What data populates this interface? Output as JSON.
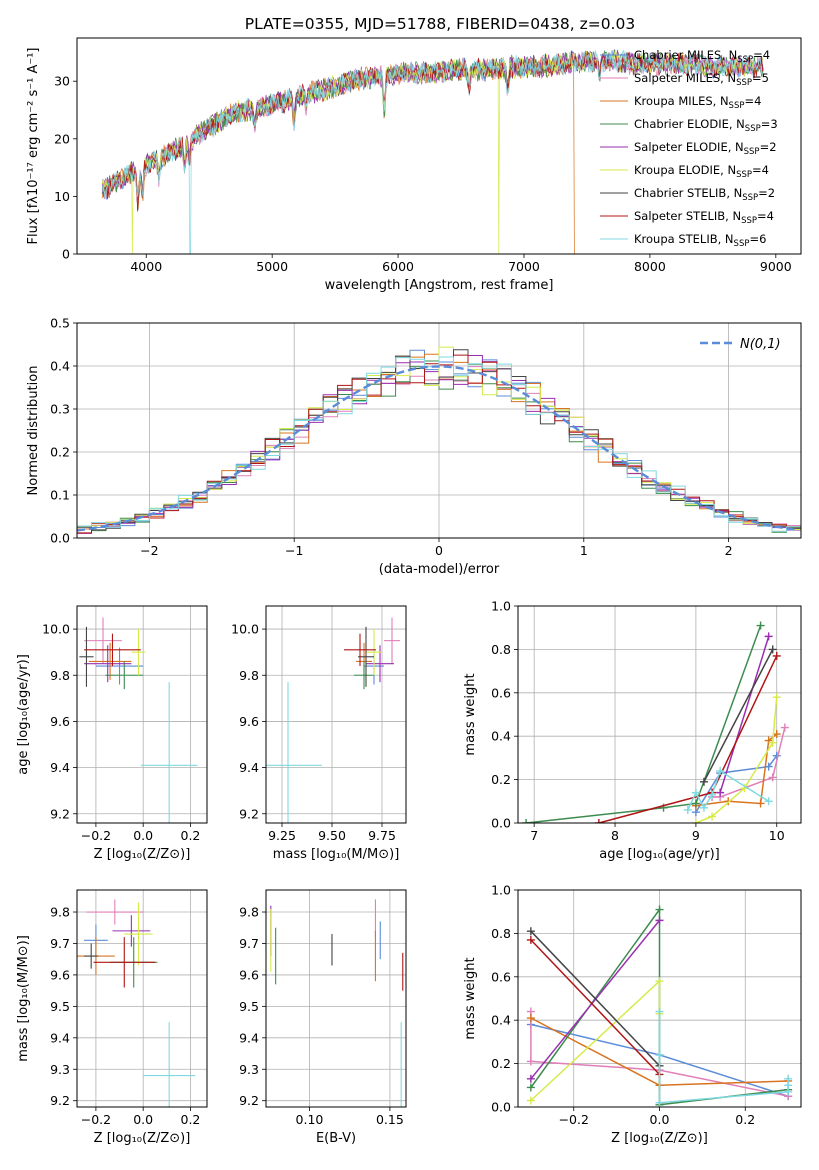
{
  "figure": {
    "title": "PLATE=0355, MJD=51788, FIBERID=0438, z=0.03"
  },
  "chart_data": [
    {
      "type": "line",
      "id": "spectrum",
      "title": "PLATE=0355, MJD=51788, FIBERID=0438, z=0.03",
      "xlabel": "wavelength [Angstrom, rest frame]",
      "ylabel": "Flux [fλ10⁻¹⁷ erg cm⁻² s⁻¹ A⁻¹]",
      "xlim": [
        3450,
        9200
      ],
      "ylim": [
        0,
        37.5
      ],
      "xticks": [
        4000,
        5000,
        6000,
        7000,
        8000,
        9000
      ],
      "yticks": [
        0,
        10,
        20,
        30
      ],
      "grid": false,
      "legend_position": "right",
      "series": [
        {
          "name": "Chabrier MILES, N_SSP=4",
          "label_main": "Chabrier MILES, N",
          "label_sub": "SSP",
          "label_tail": "=4",
          "color": "#5b8cd9"
        },
        {
          "name": "Salpeter MILES, N_SSP=5",
          "label_main": "Salpeter MILES, N",
          "label_sub": "SSP",
          "label_tail": "=5",
          "color": "#e07fb8"
        },
        {
          "name": "Kroupa MILES, N_SSP=4",
          "label_main": "Kroupa MILES, N",
          "label_sub": "SSP",
          "label_tail": "=4",
          "color": "#d97320"
        },
        {
          "name": "Chabrier ELODIE, N_SSP=3",
          "label_main": "Chabrier ELODIE, N",
          "label_sub": "SSP",
          "label_tail": "=3",
          "color": "#3d8c4f"
        },
        {
          "name": "Salpeter ELODIE, N_SSP=2",
          "label_main": "Salpeter ELODIE, N",
          "label_sub": "SSP",
          "label_tail": "=2",
          "color": "#9a2fb0"
        },
        {
          "name": "Kroupa ELODIE, N_SSP=4",
          "label_main": "Kroupa ELODIE, N",
          "label_sub": "SSP",
          "label_tail": "=4",
          "color": "#d6ea4a"
        },
        {
          "name": "Chabrier STELIB, N_SSP=2",
          "label_main": "Chabrier STELIB, N",
          "label_sub": "SSP",
          "label_tail": "=2",
          "color": "#444444"
        },
        {
          "name": "Salpeter STELIB, N_SSP=4",
          "label_main": "Salpeter STELIB, N",
          "label_sub": "SSP",
          "label_tail": "=4",
          "color": "#b01515"
        },
        {
          "name": "Kroupa STELIB, N_SSP=6",
          "label_main": "Kroupa STELIB, N",
          "label_sub": "SSP",
          "label_tail": "=6",
          "color": "#7fd9e0"
        }
      ],
      "continuum": {
        "x": [
          3650,
          3800,
          3950,
          4100,
          4300,
          4500,
          4700,
          4900,
          5100,
          5300,
          5500,
          5700,
          5900,
          6100,
          6300,
          6500,
          6700,
          6900,
          7100,
          7300,
          7500,
          7700,
          7900,
          8100,
          8300,
          8500,
          8700,
          8900
        ],
        "y": [
          11,
          13,
          15,
          16.5,
          19,
          22,
          24.5,
          25.5,
          26.5,
          28,
          29,
          30.5,
          31,
          31.5,
          31.5,
          32,
          32,
          32.5,
          32.5,
          33,
          33.5,
          33.5,
          33,
          33,
          33,
          32.5,
          32.5,
          32.5
        ]
      },
      "absorption_lines": [
        {
          "x": 3934,
          "depth": 6
        },
        {
          "x": 3969,
          "depth": 5
        },
        {
          "x": 4102,
          "depth": 3
        },
        {
          "x": 4304,
          "depth": 4
        },
        {
          "x": 4340,
          "depth": 3
        },
        {
          "x": 4861,
          "depth": 3
        },
        {
          "x": 5175,
          "depth": 4
        },
        {
          "x": 5270,
          "depth": 2
        },
        {
          "x": 5890,
          "depth": 6
        },
        {
          "x": 6563,
          "depth": 3
        },
        {
          "x": 6870,
          "depth": 4
        },
        {
          "x": 7600,
          "depth": 3
        }
      ],
      "dropouts": [
        {
          "series": "Kroupa ELODIE, N_SSP=4",
          "x": 3890
        },
        {
          "series": "Kroupa STELIB, N_SSP=6",
          "x": 4350
        },
        {
          "series": "Kroupa ELODIE, N_SSP=4",
          "x": 6800
        },
        {
          "series": "Kroupa MILES, N_SSP=4",
          "x": 7400
        }
      ]
    },
    {
      "type": "histogram",
      "id": "residuals",
      "xlabel": "(data-model)/error",
      "ylabel": "Normed distribution",
      "xlim": [
        -2.5,
        2.5
      ],
      "ylim": [
        0,
        0.5
      ],
      "xticks": [
        -2,
        -1,
        0,
        1,
        2
      ],
      "yticks": [
        0.0,
        0.1,
        0.2,
        0.3,
        0.4,
        0.5
      ],
      "grid": true,
      "bin_width": 0.1,
      "reference_curve": {
        "name": "N(0,1)",
        "mean": 0,
        "sigma": 1,
        "color": "#5b8cd9",
        "style": "dashed"
      },
      "legend_position": "top-right"
    },
    {
      "type": "errorbar",
      "id": "age-vs-metallicity",
      "xlabel": "Z [log₁₀(Z/Z⊙)]",
      "ylabel": "age [log₁₀(age/yr)]",
      "xlim": [
        -0.28,
        0.27
      ],
      "ylim": [
        9.16,
        10.1
      ],
      "xticks": [
        -0.2,
        0.0,
        0.2
      ],
      "yticks": [
        9.2,
        9.4,
        9.6,
        9.8,
        10.0
      ],
      "grid": true,
      "points": [
        {
          "color": "#5b8cd9",
          "x": -0.1,
          "xerr": 0.1,
          "y": 9.84,
          "yerr": 0.08
        },
        {
          "color": "#e07fb8",
          "x": -0.17,
          "xerr": 0.08,
          "y": 9.95,
          "yerr": 0.1
        },
        {
          "color": "#d97320",
          "x": -0.14,
          "xerr": 0.09,
          "y": 9.86,
          "yerr": 0.08
        },
        {
          "color": "#3d8c4f",
          "x": -0.08,
          "xerr": 0.08,
          "y": 9.8,
          "yerr": 0.06
        },
        {
          "color": "#9a2fb0",
          "x": -0.15,
          "xerr": 0.1,
          "y": 9.85,
          "yerr": 0.08
        },
        {
          "color": "#d6ea4a",
          "x": -0.02,
          "xerr": 0.03,
          "y": 9.9,
          "yerr": 0.1
        },
        {
          "color": "#444444",
          "x": -0.24,
          "xerr": 0.03,
          "y": 9.88,
          "yerr": 0.13
        },
        {
          "color": "#b01515",
          "x": -0.13,
          "xerr": 0.12,
          "y": 9.91,
          "yerr": 0.07
        },
        {
          "color": "#7fd9e0",
          "x": 0.11,
          "xerr": 0.12,
          "y": 9.41,
          "yerr": 0.36
        }
      ]
    },
    {
      "type": "errorbar",
      "id": "age-vs-mass",
      "xlabel": "mass [log₁₀(M/M⊙)]",
      "ylabel": "",
      "xlim": [
        9.17,
        9.87
      ],
      "ylim": [
        9.16,
        10.1
      ],
      "xticks": [
        9.25,
        9.5,
        9.75
      ],
      "yticks": [
        9.2,
        9.4,
        9.6,
        9.8,
        10.0
      ],
      "grid": true,
      "points": [
        {
          "color": "#5b8cd9",
          "x": 9.71,
          "xerr": 0.05,
          "y": 9.84,
          "yerr": 0.08
        },
        {
          "color": "#e07fb8",
          "x": 9.8,
          "xerr": 0.04,
          "y": 9.95,
          "yerr": 0.1
        },
        {
          "color": "#d97320",
          "x": 9.66,
          "xerr": 0.04,
          "y": 9.86,
          "yerr": 0.08
        },
        {
          "color": "#3d8c4f",
          "x": 9.66,
          "xerr": 0.05,
          "y": 9.8,
          "yerr": 0.06
        },
        {
          "color": "#9a2fb0",
          "x": 9.74,
          "xerr": 0.07,
          "y": 9.85,
          "yerr": 0.08
        },
        {
          "color": "#d6ea4a",
          "x": 9.71,
          "xerr": 0.04,
          "y": 9.9,
          "yerr": 0.1
        },
        {
          "color": "#444444",
          "x": 9.67,
          "xerr": 0.04,
          "y": 9.88,
          "yerr": 0.13
        },
        {
          "color": "#b01515",
          "x": 9.64,
          "xerr": 0.08,
          "y": 9.91,
          "yerr": 0.07
        },
        {
          "color": "#7fd9e0",
          "x": 9.28,
          "xerr": 0.17,
          "y": 9.41,
          "yerr": 0.36
        }
      ]
    },
    {
      "type": "line",
      "id": "mass-weight-vs-age",
      "xlabel": "age [log₁₀(age/yr)]",
      "ylabel": "mass weight",
      "xlim": [
        6.8,
        10.3
      ],
      "ylim": [
        0,
        1
      ],
      "xticks": [
        7,
        8,
        9,
        10
      ],
      "yticks": [
        0.0,
        0.2,
        0.4,
        0.6,
        0.8,
        1.0
      ],
      "grid": true,
      "series": [
        {
          "color": "#5b8cd9",
          "x": [
            9.0,
            9.3,
            9.9,
            10.0
          ],
          "y": [
            0.05,
            0.23,
            0.26,
            0.31
          ]
        },
        {
          "color": "#e07fb8",
          "x": [
            9.2,
            9.3,
            9.95,
            10.1
          ],
          "y": [
            0.12,
            0.12,
            0.21,
            0.44
          ]
        },
        {
          "color": "#d97320",
          "x": [
            9.0,
            9.4,
            9.8,
            9.9,
            10.0
          ],
          "y": [
            0.08,
            0.1,
            0.09,
            0.38,
            0.41
          ]
        },
        {
          "color": "#3d8c4f",
          "x": [
            6.9,
            8.6,
            9.0,
            9.8
          ],
          "y": [
            0.0,
            0.07,
            0.09,
            0.91
          ]
        },
        {
          "color": "#9a2fb0",
          "x": [
            9.3,
            9.9
          ],
          "y": [
            0.14,
            0.86
          ]
        },
        {
          "color": "#d6ea4a",
          "x": [
            9.0,
            9.2,
            9.6,
            9.95,
            10.0
          ],
          "y": [
            0.0,
            0.03,
            0.16,
            0.37,
            0.58
          ]
        },
        {
          "color": "#444444",
          "x": [
            9.1,
            9.95
          ],
          "y": [
            0.19,
            0.8
          ]
        },
        {
          "color": "#b01515",
          "x": [
            7.8,
            9.2,
            10.0
          ],
          "y": [
            0.0,
            0.14,
            0.77
          ]
        },
        {
          "color": "#7fd9e0",
          "x": [
            8.9,
            9.0,
            9.1,
            9.2,
            9.3,
            9.9
          ],
          "y": [
            0.06,
            0.14,
            0.07,
            0.13,
            0.24,
            0.1
          ]
        }
      ]
    },
    {
      "type": "errorbar",
      "id": "mass-vs-metallicity",
      "xlabel": "Z [log₁₀(Z/Z⊙)]",
      "ylabel": "mass [log₁₀(M/M⊙)]",
      "xlim": [
        -0.28,
        0.27
      ],
      "ylim": [
        9.18,
        9.87
      ],
      "xticks": [
        -0.2,
        0.0,
        0.2
      ],
      "yticks": [
        9.2,
        9.3,
        9.4,
        9.5,
        9.6,
        9.7,
        9.8
      ],
      "grid": true,
      "points": [
        {
          "color": "#5b8cd9",
          "x": -0.2,
          "xerr": 0.05,
          "y": 9.71,
          "yerr": 0.05
        },
        {
          "color": "#e07fb8",
          "x": -0.12,
          "xerr": 0.12,
          "y": 9.8,
          "yerr": 0.04
        },
        {
          "color": "#d97320",
          "x": -0.2,
          "xerr": 0.08,
          "y": 9.66,
          "yerr": 0.06
        },
        {
          "color": "#3d8c4f",
          "x": -0.04,
          "xerr": 0.1,
          "y": 9.64,
          "yerr": 0.08
        },
        {
          "color": "#9a2fb0",
          "x": -0.05,
          "xerr": 0.08,
          "y": 9.74,
          "yerr": 0.05
        },
        {
          "color": "#d6ea4a",
          "x": -0.02,
          "xerr": 0.06,
          "y": 9.73,
          "yerr": 0.1
        },
        {
          "color": "#444444",
          "x": -0.22,
          "xerr": 0.03,
          "y": 9.66,
          "yerr": 0.04
        },
        {
          "color": "#b01515",
          "x": -0.08,
          "xerr": 0.13,
          "y": 9.64,
          "yerr": 0.08
        },
        {
          "color": "#7fd9e0",
          "x": 0.11,
          "xerr": 0.11,
          "y": 9.28,
          "yerr": 0.17
        }
      ]
    },
    {
      "type": "errorbar",
      "id": "mass-vs-extinction",
      "xlabel": "E(B-V)",
      "ylabel": "",
      "xlim": [
        0.073,
        0.16
      ],
      "ylim": [
        9.18,
        9.87
      ],
      "xticks": [
        0.1,
        0.15
      ],
      "yticks": [
        9.2,
        9.3,
        9.4,
        9.5,
        9.6,
        9.7,
        9.8
      ],
      "grid": true,
      "points": [
        {
          "color": "#5b8cd9",
          "x": 0.144,
          "y": 9.71,
          "yerr": 0.06
        },
        {
          "color": "#e07fb8",
          "x": 0.141,
          "y": 9.78,
          "yerr": 0.06
        },
        {
          "color": "#d97320",
          "x": 0.141,
          "y": 9.66,
          "yerr": 0.08
        },
        {
          "color": "#3d8c4f",
          "x": 0.079,
          "y": 9.66,
          "yerr": 0.09
        },
        {
          "color": "#9a2fb0",
          "x": 0.076,
          "y": 9.74,
          "yerr": 0.08
        },
        {
          "color": "#d6ea4a",
          "x": 0.076,
          "y": 9.71,
          "yerr": 0.1
        },
        {
          "color": "#444444",
          "x": 0.114,
          "y": 9.68,
          "yerr": 0.05
        },
        {
          "color": "#b01515",
          "x": 0.158,
          "y": 9.61,
          "yerr": 0.06
        },
        {
          "color": "#7fd9e0",
          "x": 0.157,
          "y": 9.28,
          "yerr": 0.17
        }
      ]
    },
    {
      "type": "line",
      "id": "mass-weight-vs-metallicity",
      "xlabel": "Z [log₁₀(Z/Z⊙)]",
      "ylabel": "mass weight",
      "xlim": [
        -0.33,
        0.33
      ],
      "ylim": [
        0,
        1
      ],
      "xticks": [
        -0.2,
        0.0,
        0.2
      ],
      "yticks": [
        0.0,
        0.2,
        0.4,
        0.6,
        0.8,
        1.0
      ],
      "grid": true,
      "series": [
        {
          "color": "#5b8cd9",
          "x": [
            -0.3,
            0.0,
            0.3
          ],
          "y": [
            0.38,
            0.24,
            0.05
          ]
        },
        {
          "color": "#e07fb8",
          "x": [
            -0.3,
            -0.3,
            0.0,
            0.3
          ],
          "y": [
            0.44,
            0.21,
            0.17,
            0.05
          ]
        },
        {
          "color": "#d97320",
          "x": [
            -0.3,
            0.0,
            0.0,
            0.3
          ],
          "y": [
            0.41,
            0.1,
            0.1,
            0.12
          ]
        },
        {
          "color": "#3d8c4f",
          "x": [
            -0.3,
            0.0,
            0.0,
            0.3
          ],
          "y": [
            0.09,
            0.91,
            0.01,
            0.08
          ]
        },
        {
          "color": "#9a2fb0",
          "x": [
            -0.3,
            0.0
          ],
          "y": [
            0.13,
            0.86
          ]
        },
        {
          "color": "#d6ea4a",
          "x": [
            -0.3,
            0.0,
            0.0
          ],
          "y": [
            0.03,
            0.58,
            0.43
          ]
        },
        {
          "color": "#444444",
          "x": [
            -0.3,
            0.0
          ],
          "y": [
            0.81,
            0.19
          ]
        },
        {
          "color": "#b01515",
          "x": [
            -0.3,
            0.0
          ],
          "y": [
            0.77,
            0.15
          ]
        },
        {
          "color": "#7fd9e0",
          "x": [
            0.0,
            0.0,
            0.0,
            0.3,
            0.3,
            0.3
          ],
          "y": [
            0.44,
            0.24,
            0.02,
            0.07,
            0.1,
            0.13
          ]
        }
      ]
    }
  ]
}
